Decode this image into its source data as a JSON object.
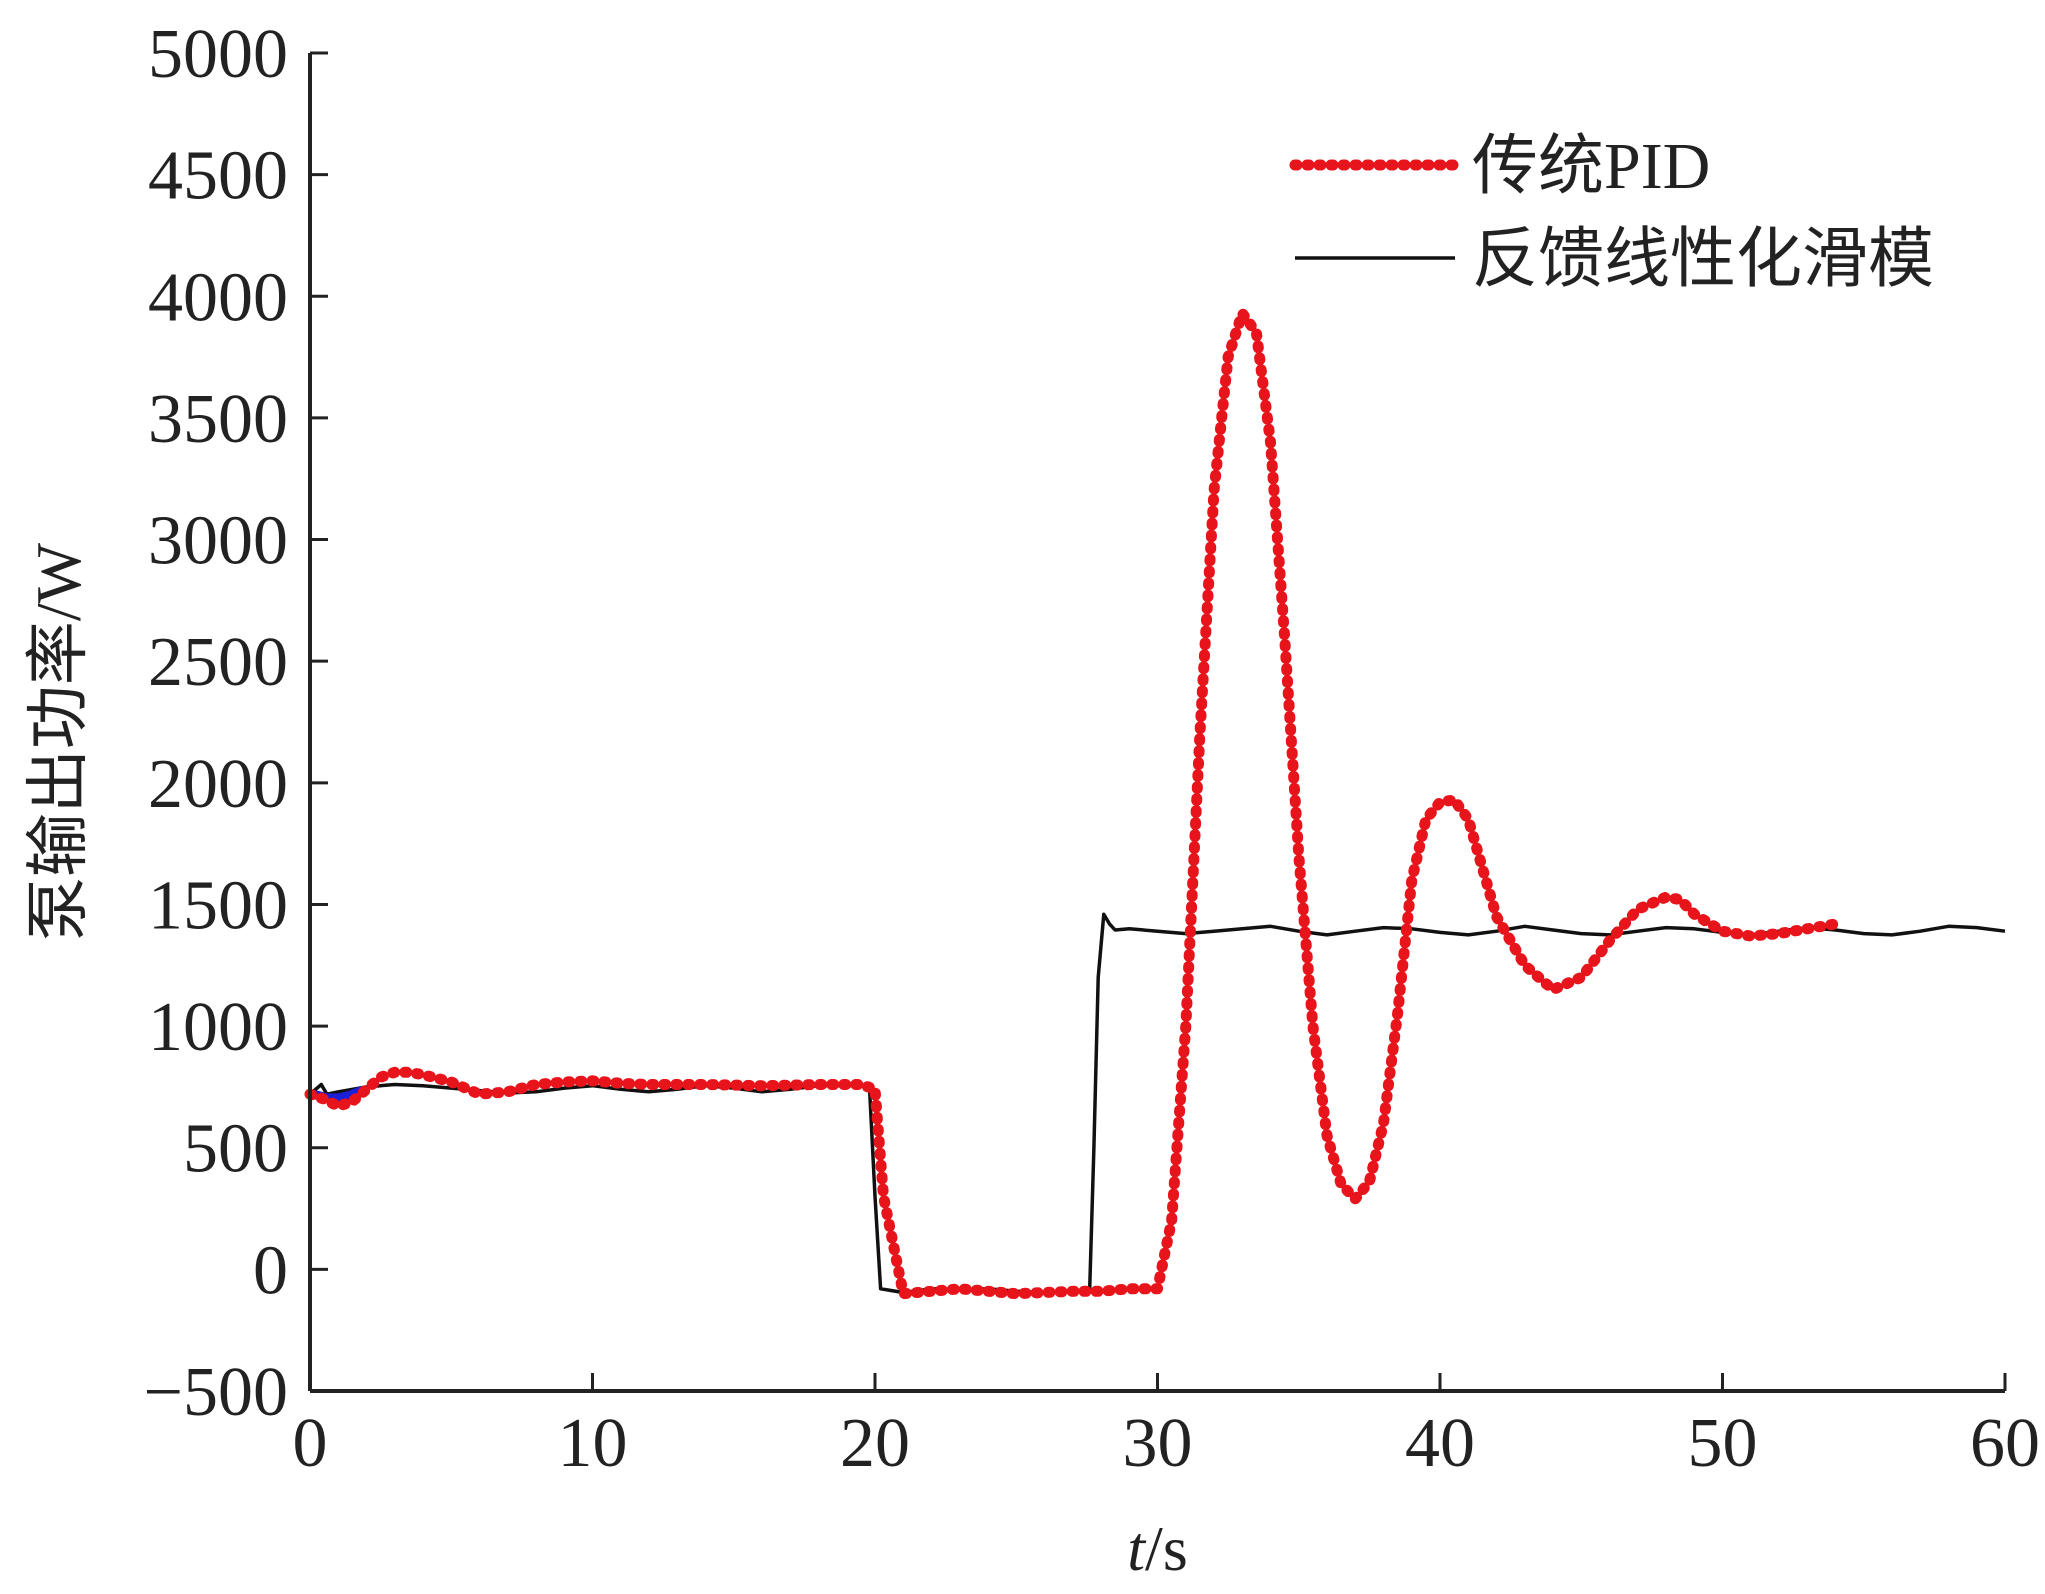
{
  "chart_data": {
    "type": "line",
    "title": "",
    "xlabel_italic": "t",
    "xlabel_unit": "/s",
    "ylabel": "泵输出功率/W",
    "xlim": [
      0,
      60
    ],
    "ylim": [
      -500,
      5000
    ],
    "xticks": [
      0,
      10,
      20,
      30,
      40,
      50,
      60
    ],
    "yticks": [
      -500,
      0,
      500,
      1000,
      1500,
      2000,
      2500,
      3000,
      3500,
      4000,
      4500,
      5000
    ],
    "ytick_labels": [
      "−500",
      "0",
      "500",
      "1000",
      "1500",
      "2000",
      "2500",
      "3000",
      "3500",
      "4000",
      "4500",
      "5000"
    ],
    "grid": false,
    "legend_position": "top-right",
    "series": [
      {
        "name": "传统PID",
        "color": "#e8141b",
        "style": "dotted",
        "x": [
          0,
          0.5,
          1.0,
          1.5,
          2.0,
          2.5,
          3.0,
          3.5,
          4.0,
          5.0,
          6.0,
          7.0,
          8.0,
          9.0,
          10.0,
          11.0,
          12.0,
          14.0,
          16.0,
          18.0,
          19.5,
          20.0,
          20.3,
          21.0,
          23.0,
          25.0,
          27.0,
          28.0,
          29.0,
          30.0,
          30.5,
          31.0,
          31.5,
          32.0,
          32.5,
          33.0,
          33.5,
          34.0,
          34.5,
          35.0,
          35.5,
          36.0,
          36.5,
          37.0,
          37.5,
          38.0,
          38.5,
          39.0,
          39.5,
          40.0,
          40.5,
          41.0,
          41.5,
          42.0,
          43.0,
          44.0,
          45.0,
          46.0,
          47.0,
          48.0,
          48.5,
          49.0,
          50.0,
          51.0,
          52.0,
          53.0,
          54.0
        ],
        "y": [
          720,
          700,
          670,
          690,
          740,
          790,
          810,
          810,
          800,
          770,
          720,
          730,
          760,
          770,
          775,
          765,
          760,
          760,
          755,
          760,
          760,
          740,
          300,
          -100,
          -80,
          -100,
          -90,
          -90,
          -80,
          -80,
          200,
          1000,
          2200,
          3200,
          3750,
          3930,
          3850,
          3400,
          2600,
          1700,
          1000,
          550,
          350,
          290,
          360,
          600,
          1050,
          1600,
          1850,
          1920,
          1930,
          1850,
          1650,
          1450,
          1250,
          1150,
          1200,
          1350,
          1480,
          1530,
          1520,
          1460,
          1390,
          1370,
          1380,
          1400,
          1420
        ]
      },
      {
        "name": "反馈线性化滑模",
        "color": "#111111",
        "style": "solid",
        "x": [
          0,
          0.4,
          0.6,
          1.0,
          2.0,
          3.0,
          4.0,
          5.0,
          6.0,
          7.0,
          8.0,
          9.0,
          10.0,
          11.0,
          12.0,
          13.0,
          14.0,
          15.0,
          16.0,
          17.0,
          18.0,
          19.0,
          19.8,
          20.0,
          20.2,
          21.0,
          22.0,
          23.0,
          24.0,
          25.0,
          26.0,
          27.0,
          27.6,
          27.75,
          27.9,
          28.1,
          28.3,
          28.5,
          29.0,
          30.0,
          31.0,
          32.0,
          33.0,
          34.0,
          35.0,
          36.0,
          37.0,
          38.0,
          39.0,
          40.0,
          41.0,
          42.0,
          43.0,
          44.0,
          45.0,
          46.0,
          47.0,
          48.0,
          49.0,
          50.0,
          51.0,
          52.0,
          53.0,
          54.0,
          55.0,
          56.0,
          57.0,
          58.0,
          59.0,
          60.0
        ],
        "y": [
          720,
          760,
          720,
          730,
          750,
          760,
          755,
          745,
          735,
          725,
          730,
          745,
          755,
          740,
          730,
          740,
          755,
          745,
          730,
          740,
          755,
          755,
          755,
          300,
          -80,
          -95,
          -80,
          -85,
          -80,
          -90,
          -95,
          -90,
          -80,
          500,
          1200,
          1460,
          1420,
          1395,
          1400,
          1390,
          1380,
          1390,
          1400,
          1410,
          1390,
          1375,
          1390,
          1405,
          1400,
          1385,
          1375,
          1390,
          1410,
          1395,
          1380,
          1375,
          1390,
          1405,
          1400,
          1385,
          1375,
          1390,
          1405,
          1395,
          1380,
          1375,
          1390,
          1410,
          1405,
          1390
        ]
      },
      {
        "name": "",
        "color": "#1b1fd6",
        "style": "solid",
        "x": [
          0,
          0.3,
          0.6,
          1.0,
          1.4,
          1.8
        ],
        "y": [
          720,
          715,
          705,
          705,
          715,
          735
        ]
      }
    ]
  }
}
